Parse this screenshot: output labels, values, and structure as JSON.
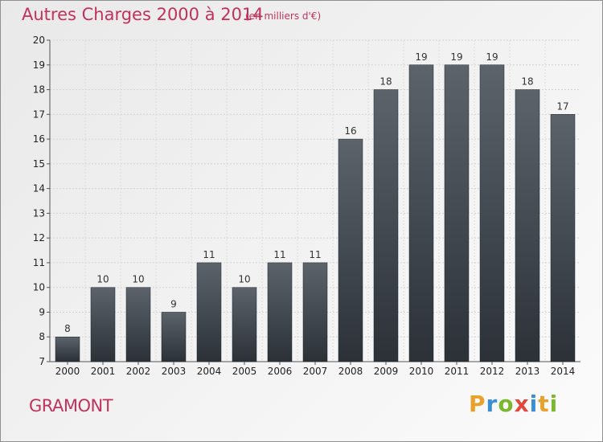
{
  "header": {
    "title": "Autres Charges 2000 à 2014",
    "unit_note": "(en milliers d'€)"
  },
  "footer": {
    "place_name": "GRAMONT",
    "logo": {
      "text": "Proxiti",
      "letters": [
        {
          "char": "P",
          "color": "#e8a12c"
        },
        {
          "char": "r",
          "color": "#3a8fd4"
        },
        {
          "char": "o",
          "color": "#7bb82f"
        },
        {
          "char": "x",
          "color": "#e04a3c"
        },
        {
          "char": "i",
          "color": "#3a8fd4"
        },
        {
          "char": "t",
          "color": "#e8a12c"
        },
        {
          "char": "i",
          "color": "#7bb82f"
        }
      ]
    }
  },
  "colors": {
    "accent": "#c0325c",
    "bar_top": "#5d636b",
    "bar_bottom": "#2b3137"
  },
  "chart_data": {
    "type": "bar",
    "title": "Autres Charges 2000 à 2014",
    "subtitle": "(en milliers d'€)",
    "xlabel": "",
    "ylabel": "",
    "categories": [
      "2000",
      "2001",
      "2002",
      "2003",
      "2004",
      "2005",
      "2006",
      "2007",
      "2008",
      "2009",
      "2010",
      "2011",
      "2012",
      "2013",
      "2014"
    ],
    "values": [
      8,
      10,
      10,
      9,
      11,
      10,
      11,
      11,
      16,
      18,
      19,
      19,
      19,
      18,
      17
    ],
    "ylim": [
      7,
      20
    ],
    "yticks": [
      7,
      8,
      9,
      10,
      11,
      12,
      13,
      14,
      15,
      16,
      17,
      18,
      19,
      20
    ],
    "grid": true,
    "data_labels": true
  }
}
